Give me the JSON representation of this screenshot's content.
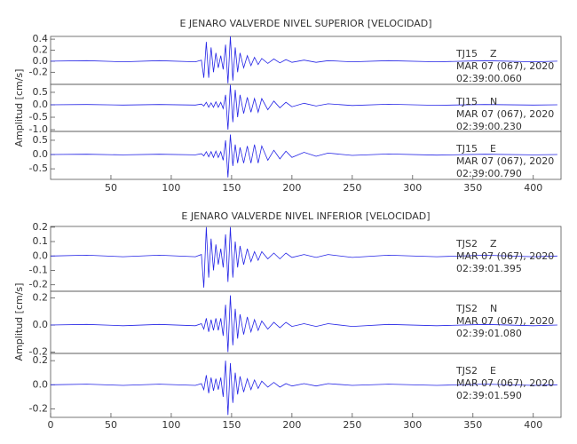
{
  "chart_data": [
    {
      "type": "line",
      "title": "E JENARO VALVERDE NIVEL SUPERIOR [VELOCIDAD]",
      "y_label": "Amplitud [cm/s]",
      "x": [
        0,
        30,
        60,
        90,
        120,
        125,
        127,
        129,
        131,
        133,
        135,
        137,
        139,
        141,
        143,
        145,
        147,
        149,
        151,
        153,
        155,
        157,
        160,
        163,
        166,
        169,
        172,
        175,
        180,
        185,
        190,
        195,
        200,
        210,
        220,
        230,
        250,
        280,
        320,
        360,
        400,
        420
      ],
      "xlim": [
        0,
        423
      ],
      "xticks": [
        50,
        100,
        150,
        200,
        250,
        300,
        350,
        400
      ],
      "color": "#2323e6",
      "panels": [
        {
          "station": "TJ15",
          "component": "Z",
          "date": "MAR 07 (067), 2020",
          "time": "02:39:00.060",
          "ylim": [
            -0.42,
            0.45
          ],
          "yticks": [
            0.4,
            0.2,
            {
              "value": 0,
              "label": "0.0"
            },
            -0.2
          ],
          "values": [
            0,
            0.01,
            -0.01,
            0.01,
            -0.01,
            0.02,
            -0.3,
            0.35,
            -0.3,
            0.25,
            -0.2,
            0.15,
            -0.12,
            0.1,
            -0.15,
            0.3,
            -0.4,
            0.45,
            -0.35,
            0.25,
            -0.2,
            0.15,
            -0.12,
            0.1,
            -0.08,
            0.07,
            -0.06,
            0.05,
            -0.04,
            0.04,
            -0.03,
            0.03,
            -0.02,
            0.02,
            -0.02,
            0.01,
            -0.01,
            0.01,
            -0.01,
            0.01,
            -0.01,
            0
          ]
        },
        {
          "station": "TJ15",
          "component": "N",
          "date": "MAR 07 (067), 2020",
          "time": "02:39:00.230",
          "ylim": [
            -1.07,
            0.82
          ],
          "yticks": [
            0.5,
            {
              "value": 0,
              "label": "0.0"
            },
            -0.5,
            {
              "value": -1,
              "label": "-1.0"
            }
          ],
          "values": [
            0,
            0.01,
            -0.01,
            0.01,
            -0.01,
            0.03,
            -0.05,
            0.1,
            -0.1,
            0.08,
            -0.1,
            0.12,
            -0.1,
            0.1,
            -0.15,
            0.4,
            -1.0,
            0.8,
            -0.7,
            0.6,
            -0.5,
            0.4,
            -0.35,
            0.3,
            -0.3,
            0.25,
            -0.3,
            0.25,
            -0.2,
            0.15,
            -0.12,
            0.1,
            -0.08,
            0.06,
            -0.05,
            0.04,
            -0.03,
            0.02,
            -0.02,
            0.01,
            -0.01,
            0
          ]
        },
        {
          "station": "TJ15",
          "component": "E",
          "date": "MAR 07 (067), 2020",
          "time": "02:39:00.790",
          "ylim": [
            -0.87,
            0.81
          ],
          "yticks": [
            0.5,
            {
              "value": 0,
              "label": "0.0"
            },
            -0.5
          ],
          "values": [
            0,
            0.01,
            -0.01,
            0.01,
            -0.01,
            0.03,
            -0.05,
            0.1,
            -0.08,
            0.1,
            -0.1,
            0.12,
            -0.1,
            0.1,
            -0.2,
            0.5,
            -0.8,
            0.7,
            -0.4,
            0.35,
            -0.3,
            0.25,
            -0.3,
            0.3,
            -0.3,
            0.35,
            -0.3,
            0.3,
            -0.2,
            0.15,
            -0.15,
            0.12,
            -0.1,
            0.08,
            -0.06,
            0.05,
            -0.03,
            0.02,
            -0.02,
            0.01,
            -0.01,
            0
          ]
        }
      ]
    },
    {
      "type": "line",
      "title": "E JENARO VALVERDE NIVEL INFERIOR [VELOCIDAD]",
      "y_label": "Amplitud [cm/s]",
      "x": [
        0,
        30,
        60,
        90,
        120,
        125,
        127,
        129,
        131,
        133,
        135,
        137,
        139,
        141,
        143,
        145,
        147,
        149,
        151,
        153,
        155,
        157,
        160,
        163,
        166,
        169,
        172,
        175,
        180,
        185,
        190,
        195,
        200,
        210,
        220,
        230,
        250,
        280,
        320,
        360,
        400,
        420
      ],
      "xlim": [
        0,
        423
      ],
      "xticks": [
        0,
        50,
        100,
        150,
        200,
        250,
        300,
        350,
        400
      ],
      "color": "#2323e6",
      "panels": [
        {
          "station": "TJS2",
          "component": "Z",
          "date": "MAR 07 (067), 2020",
          "time": "02:39:01.395",
          "ylim": [
            -0.245,
            0.205
          ],
          "yticks": [
            0.2,
            0.1,
            {
              "value": 0,
              "label": "0.0"
            },
            -0.1,
            -0.2
          ],
          "values": [
            0,
            0.005,
            -0.005,
            0.005,
            -0.005,
            0.01,
            -0.22,
            0.2,
            -0.15,
            0.12,
            -0.1,
            0.08,
            -0.06,
            0.05,
            -0.08,
            0.15,
            -0.18,
            0.2,
            -0.15,
            0.1,
            -0.08,
            0.07,
            -0.06,
            0.05,
            -0.04,
            0.03,
            -0.03,
            0.03,
            -0.02,
            0.02,
            -0.02,
            0.02,
            -0.01,
            0.01,
            -0.01,
            0.01,
            -0.01,
            0.005,
            -0.005,
            0.005,
            -0.005,
            0
          ]
        },
        {
          "station": "TJS2",
          "component": "N",
          "date": "MAR 07 (067), 2020",
          "time": "02:39:01.080",
          "ylim": [
            -0.21,
            0.25
          ],
          "yticks": [
            0.2,
            {
              "value": 0,
              "label": "0.0"
            },
            -0.2
          ],
          "values": [
            0,
            0.005,
            -0.005,
            0.005,
            -0.005,
            0.01,
            -0.03,
            0.05,
            -0.05,
            0.04,
            -0.04,
            0.05,
            -0.04,
            0.05,
            -0.08,
            0.15,
            -0.2,
            0.22,
            -0.15,
            0.12,
            -0.1,
            0.08,
            -0.07,
            0.06,
            -0.05,
            0.04,
            -0.04,
            0.03,
            -0.03,
            0.02,
            -0.02,
            0.02,
            -0.01,
            0.01,
            -0.01,
            0.01,
            -0.01,
            0.005,
            -0.005,
            0.005,
            -0.005,
            0
          ]
        },
        {
          "station": "TJS2",
          "component": "E",
          "date": "MAR 07 (067), 2020",
          "time": "02:39:01.590",
          "ylim": [
            -0.27,
            0.26
          ],
          "yticks": [
            0.2,
            {
              "value": 0,
              "label": "0.0"
            },
            -0.2
          ],
          "values": [
            0,
            0.005,
            -0.005,
            0.005,
            -0.005,
            0.01,
            -0.04,
            0.08,
            -0.07,
            0.06,
            -0.05,
            0.05,
            -0.04,
            0.06,
            -0.1,
            0.2,
            -0.25,
            0.18,
            -0.15,
            0.1,
            -0.08,
            0.07,
            -0.06,
            0.05,
            -0.04,
            0.04,
            -0.03,
            0.03,
            -0.02,
            0.02,
            -0.02,
            0.01,
            -0.01,
            0.01,
            -0.01,
            0.01,
            -0.005,
            0.005,
            -0.005,
            0.005,
            -0.005,
            0
          ]
        }
      ]
    }
  ]
}
